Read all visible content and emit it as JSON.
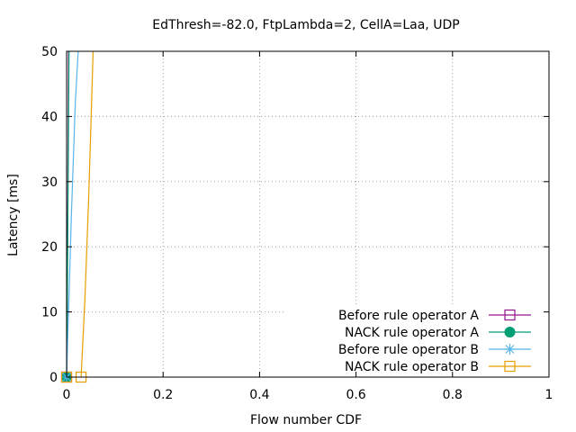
{
  "chart_data": {
    "type": "line",
    "title": "EdThresh=-82.0, FtpLambda=2, CellA=Laa, UDP",
    "xlabel": "Flow number CDF",
    "ylabel": "Latency [ms]",
    "xlim": [
      0,
      1
    ],
    "ylim": [
      0,
      50
    ],
    "x_ticks": [
      {
        "value": 0,
        "label": "0"
      },
      {
        "value": 0.2,
        "label": "0.2"
      },
      {
        "value": 0.4,
        "label": "0.4"
      },
      {
        "value": 0.6,
        "label": "0.6"
      },
      {
        "value": 0.8,
        "label": "0.8"
      },
      {
        "value": 1,
        "label": "1"
      }
    ],
    "y_ticks": [
      {
        "value": 0,
        "label": "0"
      },
      {
        "value": 10,
        "label": "10"
      },
      {
        "value": 20,
        "label": "20"
      },
      {
        "value": 30,
        "label": "30"
      },
      {
        "value": 40,
        "label": "40"
      },
      {
        "value": 50,
        "label": "50"
      }
    ],
    "grid": true,
    "legend_position": "bottom-right",
    "series": [
      {
        "name": "Before rule operator A",
        "color": "#94168b",
        "marker": "open-square",
        "points": [
          [
            0,
            0
          ],
          [
            0.0005,
            4
          ],
          [
            0.0012,
            12
          ],
          [
            0.0025,
            28
          ],
          [
            0.004,
            50
          ]
        ],
        "marker_points": [
          [
            0,
            0
          ]
        ]
      },
      {
        "name": "NACK rule operator A",
        "color": "#009e73",
        "marker": "filled-circle",
        "points": [
          [
            0,
            0
          ],
          [
            0.0005,
            4
          ],
          [
            0.0015,
            12
          ],
          [
            0.003,
            28
          ],
          [
            0.005,
            50
          ]
        ],
        "marker_points": [
          [
            0,
            0
          ]
        ]
      },
      {
        "name": "Before rule operator B",
        "color": "#56b4e9",
        "marker": "star",
        "points": [
          [
            0,
            0
          ],
          [
            0.004,
            10
          ],
          [
            0.01,
            25
          ],
          [
            0.018,
            42
          ],
          [
            0.024,
            50
          ]
        ],
        "marker_points": [
          [
            0,
            0
          ]
        ]
      },
      {
        "name": "NACK rule operator B",
        "color": "#e69f00",
        "marker": "open-square",
        "points": [
          [
            0.03,
            0
          ],
          [
            0.038,
            12
          ],
          [
            0.046,
            28
          ],
          [
            0.055,
            50
          ]
        ],
        "marker_points": [
          [
            0,
            0
          ],
          [
            0.03,
            0
          ]
        ]
      }
    ]
  }
}
